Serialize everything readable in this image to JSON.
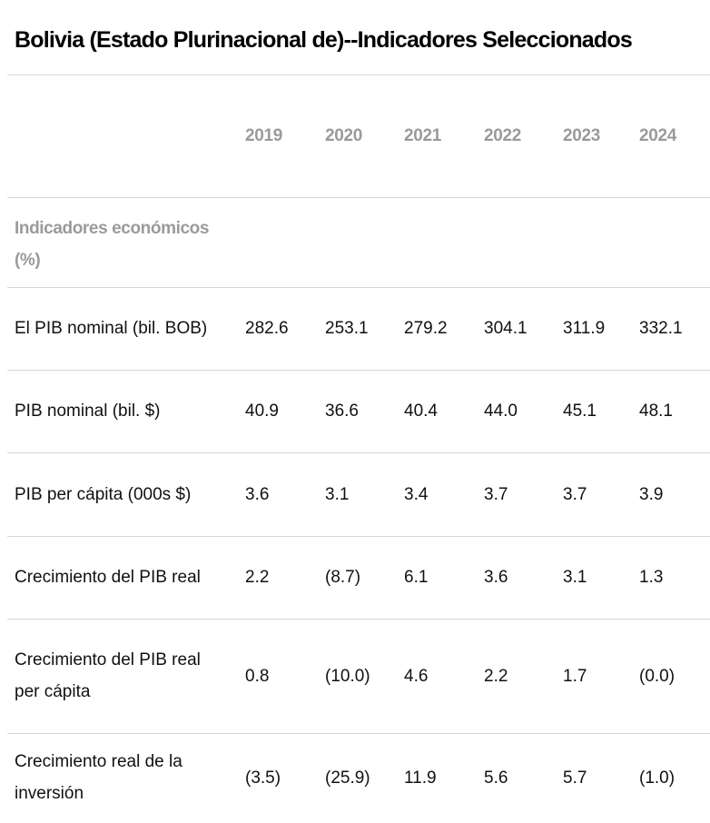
{
  "title": "Bolivia (Estado Plurinacional de)--Indicadores Seleccionados",
  "columns": [
    "2019",
    "2020",
    "2021",
    "2022",
    "2023",
    "2024"
  ],
  "section": {
    "label_line1": "Indicadores económicos",
    "label_line2": "(%)"
  },
  "rows": [
    {
      "label_line1": "El PIB nominal (bil. BOB)",
      "label_line2": "",
      "values": [
        "282.6",
        "253.1",
        "279.2",
        "304.1",
        "311.9",
        "332.1"
      ]
    },
    {
      "label_line1": "PIB nominal (bil. $)",
      "label_line2": "",
      "values": [
        "40.9",
        "36.6",
        "40.4",
        "44.0",
        "45.1",
        "48.1"
      ]
    },
    {
      "label_line1": "PIB per cápita (000s $)",
      "label_line2": "",
      "values": [
        "3.6",
        "3.1",
        "3.4",
        "3.7",
        "3.7",
        "3.9"
      ]
    },
    {
      "label_line1": "Crecimiento del PIB real",
      "label_line2": "",
      "values": [
        "2.2",
        "(8.7)",
        "6.1",
        "3.6",
        "3.1",
        "1.3"
      ]
    },
    {
      "label_line1": "Crecimiento del PIB real",
      "label_line2": "per cápita",
      "values": [
        "0.8",
        "(10.0)",
        "4.6",
        "2.2",
        "1.7",
        "(0.0)"
      ]
    },
    {
      "label_line1": "Crecimiento real de la",
      "label_line2": "inversión",
      "values": [
        "(3.5)",
        "(25.9)",
        "11.9",
        "5.6",
        "5.7",
        "(1.0)"
      ]
    }
  ]
}
